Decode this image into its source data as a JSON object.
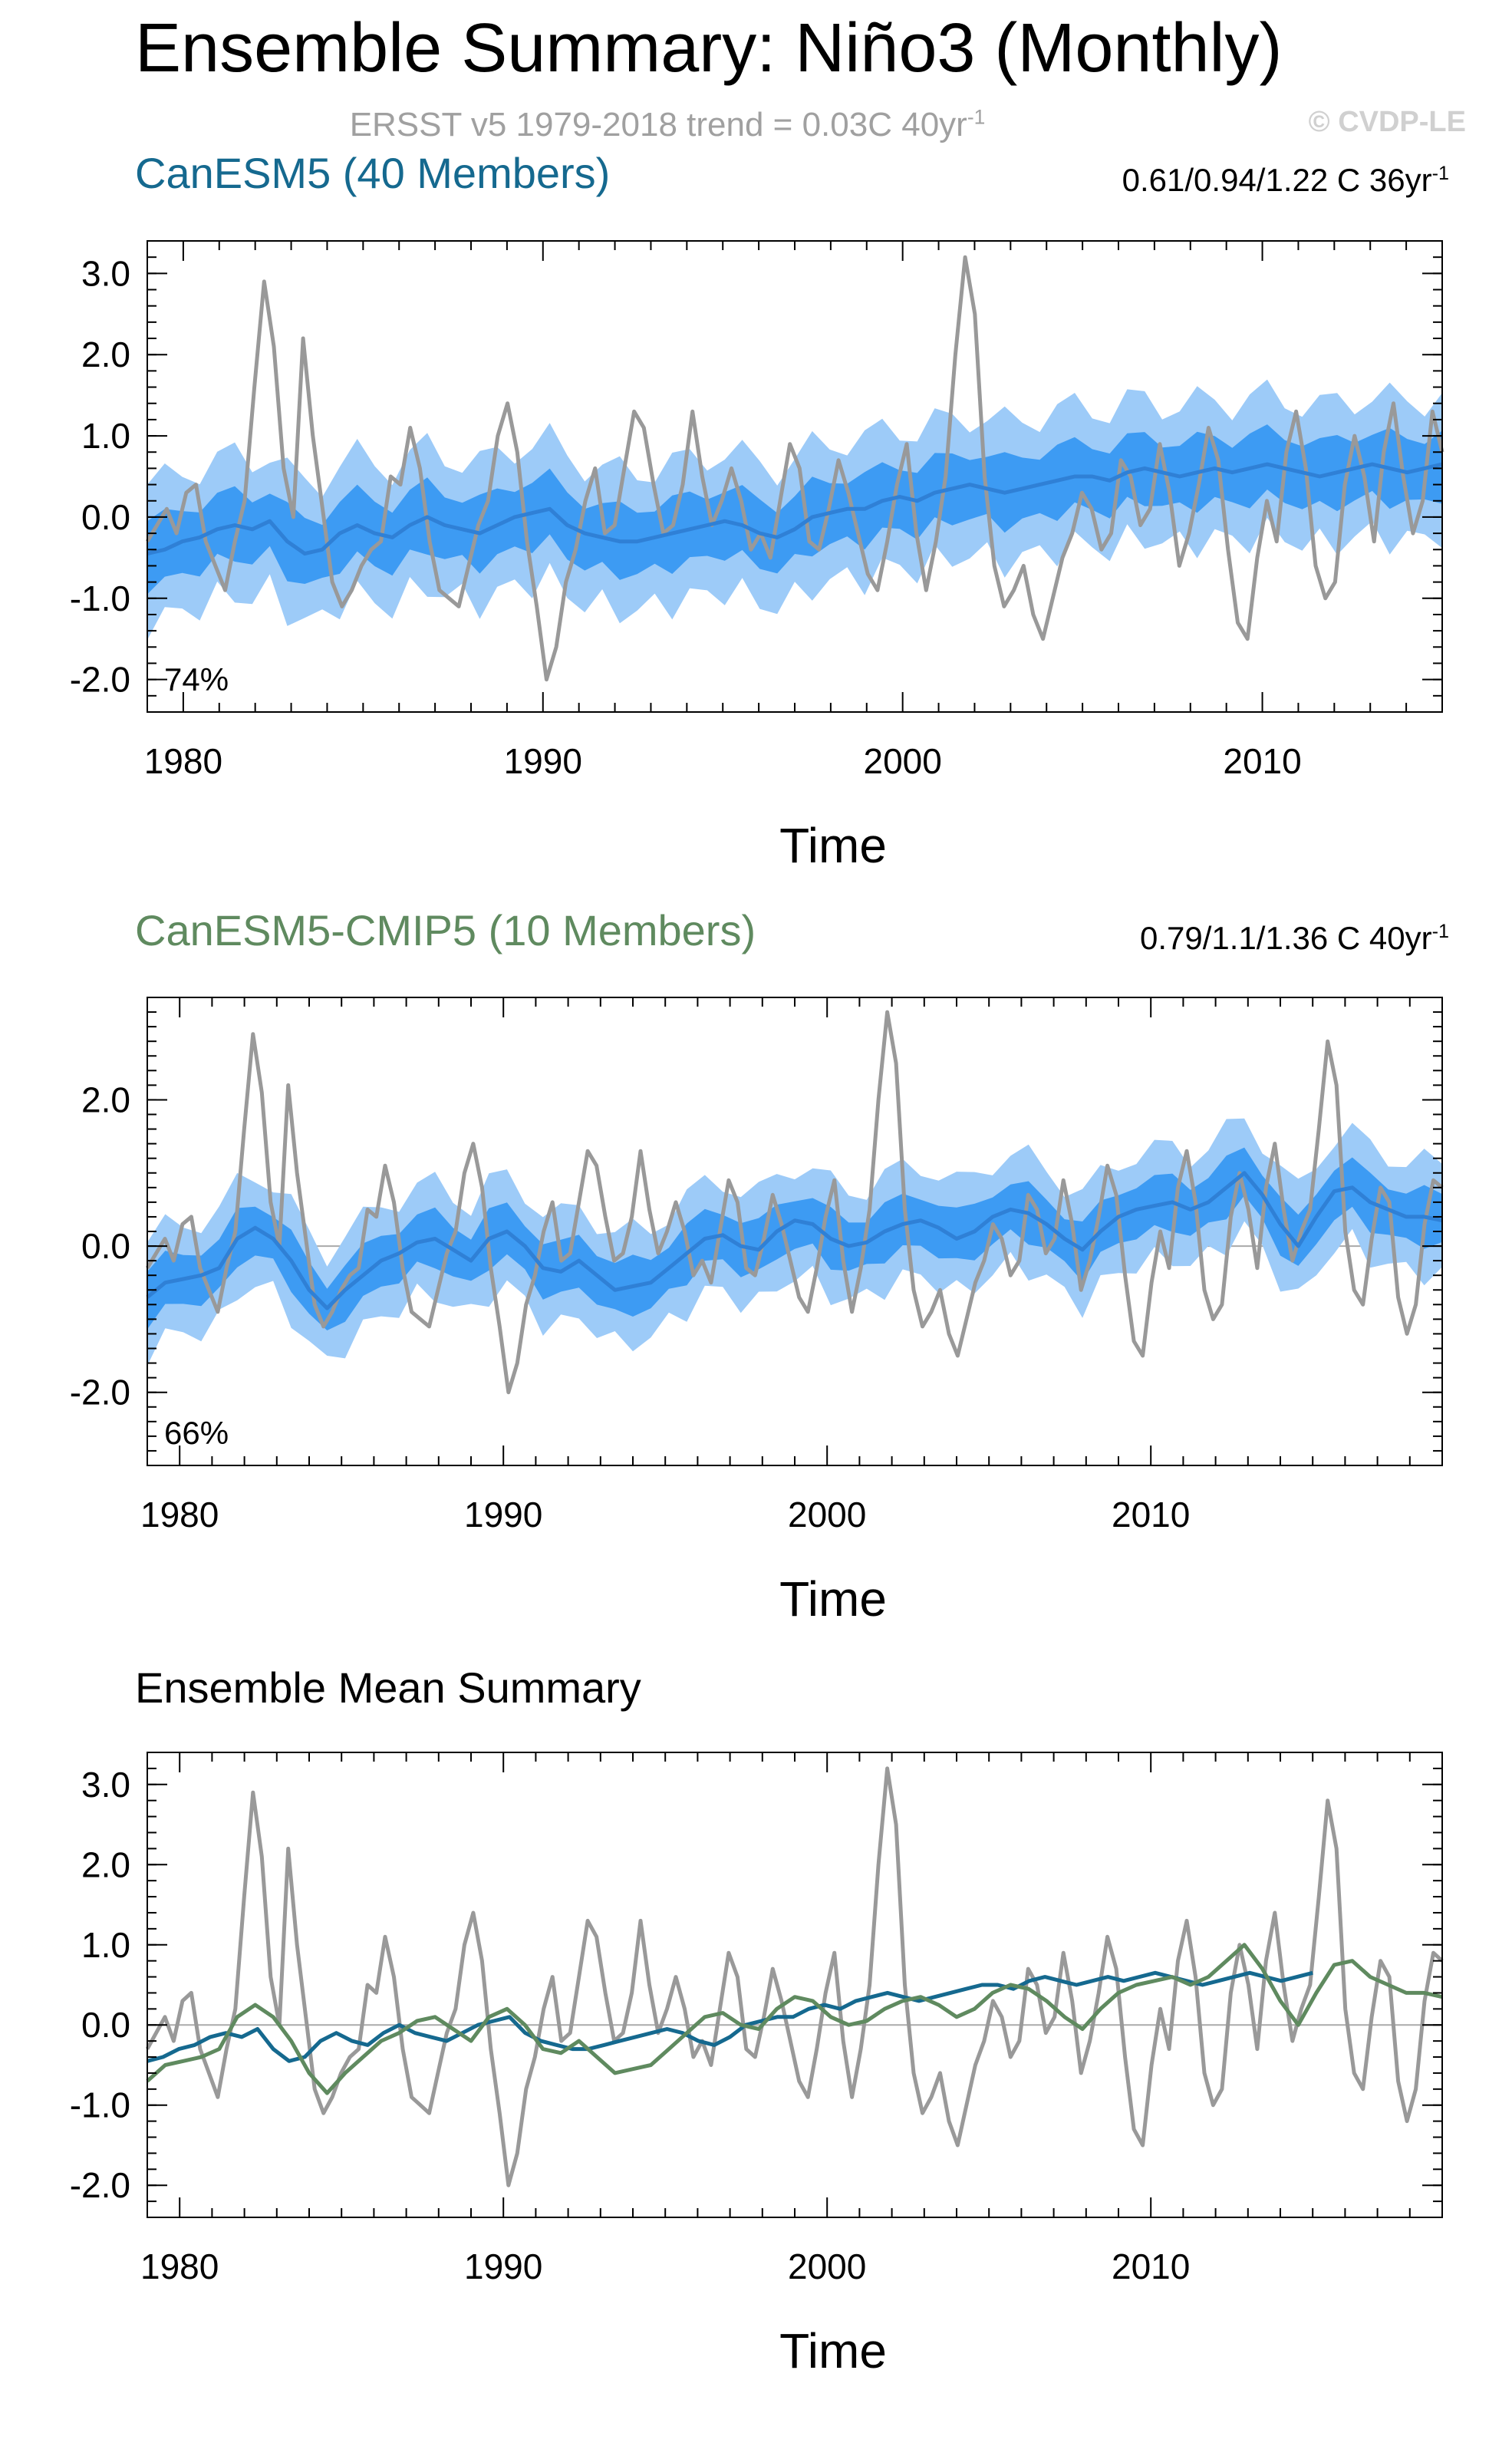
{
  "header": {
    "title": "Ensemble Summary: Niño3 (Monthly)",
    "obs_label": "ERSST v5 1979-2018 trend = 0.03C 40yr",
    "obs_label_sup": "-1",
    "copyright": "© CVDP-LE"
  },
  "colors": {
    "obs": "#999999",
    "spread_outer": "#9dcbf8",
    "spread_inner": "#3d9bf3",
    "mean_line": "#2f80d6",
    "canesm5": "#15698f",
    "canesm5_cmip5": "#5f8a5f",
    "zero_line": "#aaaaaa"
  },
  "panels": [
    {
      "title": "CanESM5 (40 Members)",
      "title_color": "#15698f",
      "trend_label": "0.61/0.94/1.22 C 36yr",
      "trend_sup": "-1",
      "pct_label": "74%",
      "xlabel": "Time"
    },
    {
      "title": "CanESM5-CMIP5 (10 Members)",
      "title_color": "#5f8a5f",
      "trend_label": "0.79/1.1/1.36 C 40yr",
      "trend_sup": "-1",
      "pct_label": "66%",
      "xlabel": "Time"
    },
    {
      "title": "Ensemble Mean Summary",
      "title_color": "#000000",
      "trend_label": "",
      "trend_sup": "",
      "pct_label": "",
      "xlabel": "Time"
    }
  ],
  "chart_data": [
    {
      "type": "line",
      "title": "CanESM5 (40 Members)",
      "xlabel": "Time",
      "ylabel": "",
      "xlim": [
        1979,
        2015
      ],
      "ylim": [
        -2.4,
        3.4
      ],
      "xticks": [
        "1980",
        "1990",
        "2000",
        "2010"
      ],
      "yticks": [
        "3.0",
        "2.0",
        "1.0",
        "0.0",
        "-1.0",
        "-2.0"
      ],
      "grid": false,
      "series": [
        {
          "role": "observations",
          "x_start": 1979,
          "x_end": 2015,
          "values": [
            -0.3,
            -0.1,
            0.1,
            -0.2,
            0.3,
            0.4,
            -0.3,
            -0.6,
            -0.9,
            -0.3,
            0.2,
            1.6,
            2.9,
            2.1,
            0.6,
            0.0,
            2.2,
            1.0,
            0.1,
            -0.8,
            -1.1,
            -0.9,
            -0.6,
            -0.4,
            -0.3,
            0.5,
            0.4,
            1.1,
            0.6,
            -0.3,
            -0.9,
            -1.0,
            -1.1,
            -0.6,
            -0.1,
            0.2,
            1.0,
            1.4,
            0.8,
            -0.3,
            -1.1,
            -2.0,
            -1.6,
            -0.8,
            -0.4,
            0.2,
            0.6,
            -0.2,
            -0.1,
            0.6,
            1.3,
            1.1,
            0.4,
            -0.2,
            -0.1,
            0.4,
            1.3,
            0.5,
            -0.1,
            0.2,
            0.6,
            0.2,
            -0.4,
            -0.2,
            -0.5,
            0.2,
            0.9,
            0.6,
            -0.3,
            -0.4,
            0.1,
            0.7,
            0.3,
            -0.2,
            -0.7,
            -0.9,
            -0.3,
            0.4,
            0.9,
            -0.2,
            -0.9,
            -0.3,
            0.5,
            2.0,
            3.2,
            2.5,
            0.5,
            -0.6,
            -1.1,
            -0.9,
            -0.6,
            -1.2,
            -1.5,
            -1.0,
            -0.5,
            -0.2,
            0.3,
            0.1,
            -0.4,
            -0.2,
            0.7,
            0.5,
            -0.1,
            0.1,
            0.9,
            0.3,
            -0.6,
            -0.2,
            0.4,
            1.1,
            0.7,
            -0.4,
            -1.3,
            -1.5,
            -0.5,
            0.2,
            -0.3,
            0.8,
            1.3,
            0.6,
            -0.6,
            -1.0,
            -0.8,
            0.4,
            1.0,
            0.5,
            -0.3,
            0.8,
            1.4,
            0.5,
            -0.2,
            0.2,
            1.3,
            0.8
          ]
        },
        {
          "role": "ensemble_mean",
          "x_start": 1979,
          "x_end": 2015,
          "values": [
            -0.45,
            -0.4,
            -0.3,
            -0.25,
            -0.15,
            -0.1,
            -0.15,
            -0.05,
            -0.3,
            -0.45,
            -0.4,
            -0.2,
            -0.1,
            -0.2,
            -0.25,
            -0.1,
            0.0,
            -0.1,
            -0.15,
            -0.2,
            -0.1,
            0.0,
            0.05,
            0.1,
            -0.1,
            -0.2,
            -0.25,
            -0.3,
            -0.3,
            -0.25,
            -0.2,
            -0.15,
            -0.1,
            -0.05,
            -0.1,
            -0.2,
            -0.25,
            -0.15,
            0.0,
            0.05,
            0.1,
            0.1,
            0.2,
            0.25,
            0.2,
            0.3,
            0.35,
            0.4,
            0.35,
            0.3,
            0.35,
            0.4,
            0.45,
            0.5,
            0.5,
            0.45,
            0.55,
            0.6,
            0.55,
            0.5,
            0.55,
            0.6,
            0.55,
            0.6,
            0.65,
            0.6,
            0.55,
            0.5,
            0.55,
            0.6,
            0.65,
            0.6,
            0.55,
            0.6,
            0.65
          ]
        }
      ]
    },
    {
      "type": "line",
      "title": "CanESM5-CMIP5 (10 Members)",
      "xlabel": "Time",
      "ylabel": "",
      "xlim": [
        1979,
        2019
      ],
      "ylim": [
        -3.0,
        3.4
      ],
      "xticks": [
        "1980",
        "1990",
        "2000",
        "2010"
      ],
      "yticks": [
        "2.0",
        "0.0",
        "-2.0"
      ],
      "grid": false,
      "series": [
        {
          "role": "observations",
          "x_start": 1979,
          "x_end": 2019,
          "values": [
            -0.3,
            -0.1,
            0.1,
            -0.2,
            0.3,
            0.4,
            -0.3,
            -0.6,
            -0.9,
            -0.3,
            0.2,
            1.6,
            2.9,
            2.1,
            0.6,
            0.0,
            2.2,
            1.0,
            0.1,
            -0.8,
            -1.1,
            -0.9,
            -0.6,
            -0.4,
            -0.3,
            0.5,
            0.4,
            1.1,
            0.6,
            -0.3,
            -0.9,
            -1.0,
            -1.1,
            -0.6,
            -0.1,
            0.2,
            1.0,
            1.4,
            0.8,
            -0.3,
            -1.1,
            -2.0,
            -1.6,
            -0.8,
            -0.4,
            0.2,
            0.6,
            -0.2,
            -0.1,
            0.6,
            1.3,
            1.1,
            0.4,
            -0.2,
            -0.1,
            0.4,
            1.3,
            0.5,
            -0.1,
            0.2,
            0.6,
            0.2,
            -0.4,
            -0.2,
            -0.5,
            0.2,
            0.9,
            0.6,
            -0.3,
            -0.4,
            0.1,
            0.7,
            0.3,
            -0.2,
            -0.7,
            -0.9,
            -0.3,
            0.4,
            0.9,
            -0.2,
            -0.9,
            -0.3,
            0.5,
            2.0,
            3.2,
            2.5,
            0.5,
            -0.6,
            -1.1,
            -0.9,
            -0.6,
            -1.2,
            -1.5,
            -1.0,
            -0.5,
            -0.2,
            0.3,
            0.1,
            -0.4,
            -0.2,
            0.7,
            0.5,
            -0.1,
            0.1,
            0.9,
            0.3,
            -0.6,
            -0.2,
            0.4,
            1.1,
            0.7,
            -0.4,
            -1.3,
            -1.5,
            -0.5,
            0.2,
            -0.3,
            0.8,
            1.3,
            0.6,
            -0.6,
            -1.0,
            -0.8,
            0.4,
            1.0,
            0.5,
            -0.3,
            0.8,
            1.4,
            0.5,
            -0.2,
            0.2,
            0.5,
            1.6,
            2.8,
            2.2,
            0.2,
            -0.6,
            -0.8,
            0.1,
            0.8,
            0.6,
            -0.7,
            -1.2,
            -0.8,
            0.3,
            0.9,
            0.8
          ]
        },
        {
          "role": "ensemble_mean",
          "x_start": 1979,
          "x_end": 2019,
          "values": [
            -0.7,
            -0.5,
            -0.45,
            -0.4,
            -0.3,
            0.1,
            0.25,
            0.1,
            -0.2,
            -0.6,
            -0.85,
            -0.6,
            -0.4,
            -0.2,
            -0.1,
            0.05,
            0.1,
            -0.05,
            -0.2,
            0.1,
            0.2,
            0.0,
            -0.3,
            -0.35,
            -0.2,
            -0.4,
            -0.6,
            -0.55,
            -0.5,
            -0.3,
            -0.1,
            0.1,
            0.15,
            0.0,
            -0.05,
            0.2,
            0.35,
            0.3,
            0.1,
            0.0,
            0.05,
            0.2,
            0.3,
            0.35,
            0.25,
            0.1,
            0.2,
            0.4,
            0.5,
            0.45,
            0.3,
            0.1,
            -0.05,
            0.2,
            0.4,
            0.5,
            0.55,
            0.6,
            0.5,
            0.6,
            0.8,
            1.0,
            0.7,
            0.3,
            0.0,
            0.4,
            0.75,
            0.8,
            0.6,
            0.5,
            0.4,
            0.4,
            0.35
          ]
        }
      ]
    },
    {
      "type": "line",
      "title": "Ensemble Mean Summary",
      "xlabel": "Time",
      "ylabel": "",
      "xlim": [
        1979,
        2019
      ],
      "ylim": [
        -2.4,
        3.4
      ],
      "xticks": [
        "1980",
        "1990",
        "2000",
        "2010"
      ],
      "yticks": [
        "3.0",
        "2.0",
        "1.0",
        "0.0",
        "-1.0",
        "-2.0"
      ],
      "grid": false,
      "series": [
        {
          "role": "observations",
          "x_start": 1979,
          "x_end": 2019,
          "values": [
            -0.3,
            -0.1,
            0.1,
            -0.2,
            0.3,
            0.4,
            -0.3,
            -0.6,
            -0.9,
            -0.3,
            0.2,
            1.6,
            2.9,
            2.1,
            0.6,
            0.0,
            2.2,
            1.0,
            0.1,
            -0.8,
            -1.1,
            -0.9,
            -0.6,
            -0.4,
            -0.3,
            0.5,
            0.4,
            1.1,
            0.6,
            -0.3,
            -0.9,
            -1.0,
            -1.1,
            -0.6,
            -0.1,
            0.2,
            1.0,
            1.4,
            0.8,
            -0.3,
            -1.1,
            -2.0,
            -1.6,
            -0.8,
            -0.4,
            0.2,
            0.6,
            -0.2,
            -0.1,
            0.6,
            1.3,
            1.1,
            0.4,
            -0.2,
            -0.1,
            0.4,
            1.3,
            0.5,
            -0.1,
            0.2,
            0.6,
            0.2,
            -0.4,
            -0.2,
            -0.5,
            0.2,
            0.9,
            0.6,
            -0.3,
            -0.4,
            0.1,
            0.7,
            0.3,
            -0.2,
            -0.7,
            -0.9,
            -0.3,
            0.4,
            0.9,
            -0.2,
            -0.9,
            -0.3,
            0.5,
            2.0,
            3.2,
            2.5,
            0.5,
            -0.6,
            -1.1,
            -0.9,
            -0.6,
            -1.2,
            -1.5,
            -1.0,
            -0.5,
            -0.2,
            0.3,
            0.1,
            -0.4,
            -0.2,
            0.7,
            0.5,
            -0.1,
            0.1,
            0.9,
            0.3,
            -0.6,
            -0.2,
            0.4,
            1.1,
            0.7,
            -0.4,
            -1.3,
            -1.5,
            -0.5,
            0.2,
            -0.3,
            0.8,
            1.3,
            0.6,
            -0.6,
            -1.0,
            -0.8,
            0.4,
            1.0,
            0.5,
            -0.3,
            0.8,
            1.4,
            0.5,
            -0.2,
            0.2,
            0.5,
            1.6,
            2.8,
            2.2,
            0.2,
            -0.6,
            -0.8,
            0.1,
            0.8,
            0.6,
            -0.7,
            -1.2,
            -0.8,
            0.3,
            0.9,
            0.8
          ]
        },
        {
          "role": "CanESM5",
          "x_start": 1979,
          "x_end": 2015,
          "values": [
            -0.45,
            -0.4,
            -0.3,
            -0.25,
            -0.15,
            -0.1,
            -0.15,
            -0.05,
            -0.3,
            -0.45,
            -0.4,
            -0.2,
            -0.1,
            -0.2,
            -0.25,
            -0.1,
            0.0,
            -0.1,
            -0.15,
            -0.2,
            -0.1,
            0.0,
            0.05,
            0.1,
            -0.1,
            -0.2,
            -0.25,
            -0.3,
            -0.3,
            -0.25,
            -0.2,
            -0.15,
            -0.1,
            -0.05,
            -0.1,
            -0.2,
            -0.25,
            -0.15,
            0.0,
            0.05,
            0.1,
            0.1,
            0.2,
            0.25,
            0.2,
            0.3,
            0.35,
            0.4,
            0.35,
            0.3,
            0.35,
            0.4,
            0.45,
            0.5,
            0.5,
            0.45,
            0.55,
            0.6,
            0.55,
            0.5,
            0.55,
            0.6,
            0.55,
            0.6,
            0.65,
            0.6,
            0.55,
            0.5,
            0.55,
            0.6,
            0.65,
            0.6,
            0.55,
            0.6,
            0.65
          ]
        },
        {
          "role": "CanESM5-CMIP5",
          "x_start": 1979,
          "x_end": 2019,
          "values": [
            -0.7,
            -0.5,
            -0.45,
            -0.4,
            -0.3,
            0.1,
            0.25,
            0.1,
            -0.2,
            -0.6,
            -0.85,
            -0.6,
            -0.4,
            -0.2,
            -0.1,
            0.05,
            0.1,
            -0.05,
            -0.2,
            0.1,
            0.2,
            0.0,
            -0.3,
            -0.35,
            -0.2,
            -0.4,
            -0.6,
            -0.55,
            -0.5,
            -0.3,
            -0.1,
            0.1,
            0.15,
            0.0,
            -0.05,
            0.2,
            0.35,
            0.3,
            0.1,
            0.0,
            0.05,
            0.2,
            0.3,
            0.35,
            0.25,
            0.1,
            0.2,
            0.4,
            0.5,
            0.45,
            0.3,
            0.1,
            -0.05,
            0.2,
            0.4,
            0.5,
            0.55,
            0.6,
            0.5,
            0.6,
            0.8,
            1.0,
            0.7,
            0.3,
            0.0,
            0.4,
            0.75,
            0.8,
            0.6,
            0.5,
            0.4,
            0.4,
            0.35
          ]
        }
      ]
    }
  ]
}
